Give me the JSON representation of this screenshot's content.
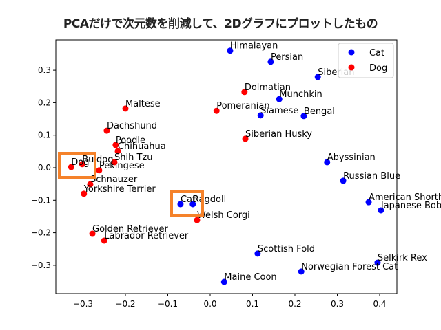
{
  "title": "PCAだけで次元数を削減して、2Dグラフにプロットしたもの",
  "chart_data": {
    "type": "scatter",
    "title": "PCAだけで次元数を削減して、2Dグラフにプロットしたもの",
    "xlabel": "",
    "ylabel": "",
    "xlim": [
      -0.36,
      0.44
    ],
    "ylim": [
      -0.385,
      0.39
    ],
    "xticks": [
      -0.3,
      -0.2,
      -0.1,
      0.0,
      0.1,
      0.2,
      0.3,
      0.4
    ],
    "xtick_labels": [
      "−0.3",
      "−0.2",
      "−0.1",
      "0.0",
      "0.1",
      "0.2",
      "0.3",
      "0.4"
    ],
    "yticks": [
      0.3,
      0.2,
      0.1,
      0.0,
      -0.1,
      -0.2,
      -0.3
    ],
    "ytick_labels": [
      "0.3",
      "0.2",
      "0.1",
      "0.0",
      "−0.1",
      "−0.2",
      "−0.3"
    ],
    "grid": false,
    "legend": {
      "position": "upper right",
      "entries": [
        {
          "label": "Cat",
          "color": "#0000ff"
        },
        {
          "label": "Dog",
          "color": "#ff0000"
        }
      ]
    },
    "series": [
      {
        "name": "Cat",
        "color": "#0000ff",
        "points": [
          {
            "label": "Himalayan",
            "x": 0.047,
            "y": 0.36
          },
          {
            "label": "Persian",
            "x": 0.143,
            "y": 0.326
          },
          {
            "label": "Siberian",
            "x": 0.254,
            "y": 0.279
          },
          {
            "label": "Munchkin",
            "x": 0.163,
            "y": 0.211
          },
          {
            "label": "Siamese",
            "x": 0.119,
            "y": 0.161
          },
          {
            "label": "Bengal",
            "x": 0.221,
            "y": 0.159
          },
          {
            "label": "Abyssinian",
            "x": 0.276,
            "y": 0.017
          },
          {
            "label": "Russian Blue",
            "x": 0.314,
            "y": -0.04
          },
          {
            "label": "American Shorthair",
            "x": 0.374,
            "y": -0.106
          },
          {
            "label": "Japanese Bobtail",
            "x": 0.403,
            "y": -0.131
          },
          {
            "label": "Cat",
            "x": -0.07,
            "y": -0.112
          },
          {
            "label": "Ragdoll",
            "x": -0.041,
            "y": -0.112
          },
          {
            "label": "Scottish Fold",
            "x": 0.112,
            "y": -0.264
          },
          {
            "label": "Selkirk Rex",
            "x": 0.395,
            "y": -0.292
          },
          {
            "label": "Norwegian Forest Cat",
            "x": 0.215,
            "y": -0.319
          },
          {
            "label": "Maine Coon",
            "x": 0.033,
            "y": -0.351
          }
        ]
      },
      {
        "name": "Dog",
        "color": "#ff0000",
        "points": [
          {
            "label": "Dolmatian",
            "x": 0.081,
            "y": 0.233
          },
          {
            "label": "Pomeranian",
            "x": 0.015,
            "y": 0.175
          },
          {
            "label": "Siberian Husky",
            "x": 0.083,
            "y": 0.089
          },
          {
            "label": "Maltese",
            "x": -0.2,
            "y": 0.182
          },
          {
            "label": "Dachshund",
            "x": -0.244,
            "y": 0.114
          },
          {
            "label": "Poodle",
            "x": -0.223,
            "y": 0.07
          },
          {
            "label": "Chihuahua",
            "x": -0.218,
            "y": 0.051
          },
          {
            "label": "Shih Tzu",
            "x": -0.226,
            "y": 0.017
          },
          {
            "label": "Buldog",
            "x": -0.302,
            "y": 0.011
          },
          {
            "label": "Dog",
            "x": -0.328,
            "y": 0.002
          },
          {
            "label": "Pekingese",
            "x": -0.262,
            "y": -0.008
          },
          {
            "label": "Schnauzer",
            "x": -0.283,
            "y": -0.051
          },
          {
            "label": "Yorkshire Terrier",
            "x": -0.298,
            "y": -0.08
          },
          {
            "label": "Golden Retriever",
            "x": -0.278,
            "y": -0.203
          },
          {
            "label": "Labrador Retriever",
            "x": -0.25,
            "y": -0.224
          },
          {
            "label": "Welsh Corgi",
            "x": -0.031,
            "y": -0.161
          }
        ]
      }
    ],
    "annotations": [
      {
        "type": "highlight-box",
        "around": "Dog",
        "color": "#f5822a"
      },
      {
        "type": "highlight-box",
        "around": "Cat",
        "color": "#f5822a"
      }
    ]
  }
}
